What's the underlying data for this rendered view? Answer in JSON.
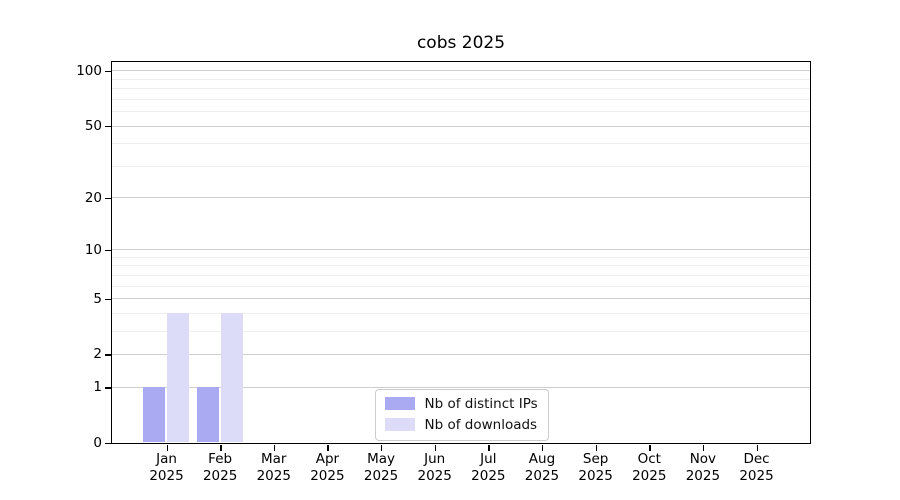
{
  "chart_data": {
    "type": "bar",
    "title": "cobs 2025",
    "categories": [
      "Jan",
      "Feb",
      "Mar",
      "Apr",
      "May",
      "Jun",
      "Jul",
      "Aug",
      "Sep",
      "Oct",
      "Nov",
      "Dec"
    ],
    "x_year_label": "2025",
    "series": [
      {
        "name": "Nb of distinct IPs",
        "color": "#aaaaf2",
        "values": [
          1,
          1,
          0,
          0,
          0,
          0,
          0,
          0,
          0,
          0,
          0,
          0
        ]
      },
      {
        "name": "Nb of downloads",
        "color": "#dcdcf8",
        "values": [
          4,
          4,
          0,
          0,
          0,
          0,
          0,
          0,
          0,
          0,
          0,
          0
        ]
      }
    ],
    "y_axis": {
      "scale": "log1p",
      "tick_values": [
        100,
        50,
        20,
        10,
        5,
        2,
        1,
        0
      ],
      "tick_labels": [
        "100",
        "50",
        "20",
        "10",
        "5",
        "2",
        "1",
        "0"
      ],
      "minor_tick_values": [
        3,
        4,
        6,
        7,
        8,
        9,
        30,
        40,
        60,
        70,
        80,
        90
      ],
      "ylim": [
        0,
        112
      ]
    },
    "grid": {
      "major_color": "#cfcfcf",
      "minor_color": "#efefef"
    },
    "legend": {
      "position": "lower-center"
    },
    "spine_color": "#000000",
    "text_color": "#000000",
    "background_color": "#ffffff"
  }
}
